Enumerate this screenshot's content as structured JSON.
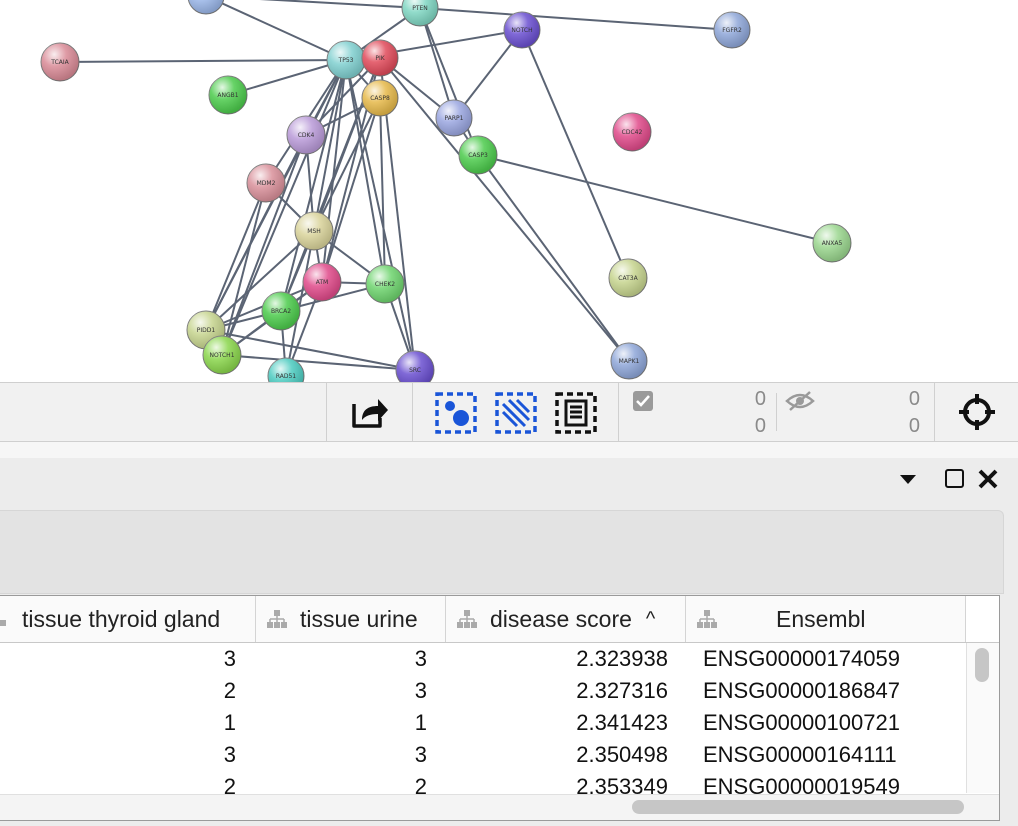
{
  "network": {
    "nodes": [
      {
        "label": "TCAIA",
        "color": "#d98a96"
      },
      {
        "label": "ANGB1",
        "color": "#4ccb4c"
      },
      {
        "label": "TP53",
        "color": "#7fcfcf"
      },
      {
        "label": "PIK",
        "color": "#e04a5a"
      },
      {
        "label": "PTEN",
        "color": "#7fd6c2"
      },
      {
        "label": "NOTCH",
        "color": "#6a4fd0"
      },
      {
        "label": "FGFR2",
        "color": "#8ea6d8"
      },
      {
        "label": "CASP8",
        "color": "#e6b94a"
      },
      {
        "label": "PARP1",
        "color": "#9aa6e0"
      },
      {
        "label": "CDK4",
        "color": "#b99ad8"
      },
      {
        "label": "CDC42",
        "color": "#e04a8a"
      },
      {
        "label": "CASP3",
        "color": "#4ccb4c"
      },
      {
        "label": "MDM2",
        "color": "#d9909a"
      },
      {
        "label": "MSH",
        "color": "#d9d39a"
      },
      {
        "label": "ANXA5",
        "color": "#9ad68e"
      },
      {
        "label": "ATM",
        "color": "#e04a8a"
      },
      {
        "label": "CHEK2",
        "color": "#6ed46e"
      },
      {
        "label": "CAT3A",
        "color": "#c6d48e"
      },
      {
        "label": "BRCA2",
        "color": "#4ccb4c"
      },
      {
        "label": "PIDD1",
        "color": "#c6d48e"
      },
      {
        "label": "NOTCH1",
        "color": "#8ad64c"
      },
      {
        "label": "MAPK1",
        "color": "#8ea6d8"
      },
      {
        "label": "RAD51",
        "color": "#4ccbc0"
      },
      {
        "label": "SRC",
        "color": "#6a4fd0"
      },
      {
        "label": "",
        "color": "#9ab6e8"
      }
    ]
  },
  "toolbar": {
    "export_icon": "share-arrow-icon",
    "select_nodes_icon": "select-nodes-icon",
    "select_edges_icon": "select-edges-icon",
    "select_all_icon": "select-all-icon",
    "selected_nodes": "0",
    "selected_edges": "0",
    "hidden_nodes": "0",
    "hidden_edges": "0",
    "checkbox_icon": "checkbox-icon",
    "hidden_icon": "eye-slash-icon",
    "center_icon": "crosshair-icon"
  },
  "panel": {
    "menu_icon": "chevron-down-icon",
    "float_icon": "maximize-icon",
    "close_icon": "close-icon"
  },
  "table": {
    "columns": [
      {
        "label": "tissue thyroid gland"
      },
      {
        "label": "tissue urine"
      },
      {
        "label": "disease score",
        "sort": "^"
      },
      {
        "label": "Ensembl"
      }
    ],
    "rows": [
      [
        "3",
        "3",
        "2.323938",
        "ENSG00000174059"
      ],
      [
        "2",
        "3",
        "2.327316",
        "ENSG00000186847"
      ],
      [
        "1",
        "1",
        "2.341423",
        "ENSG00000100721"
      ],
      [
        "3",
        "3",
        "2.350498",
        "ENSG00000164111"
      ],
      [
        "2",
        "2",
        "2.353349",
        "ENSG00000019549"
      ]
    ]
  }
}
